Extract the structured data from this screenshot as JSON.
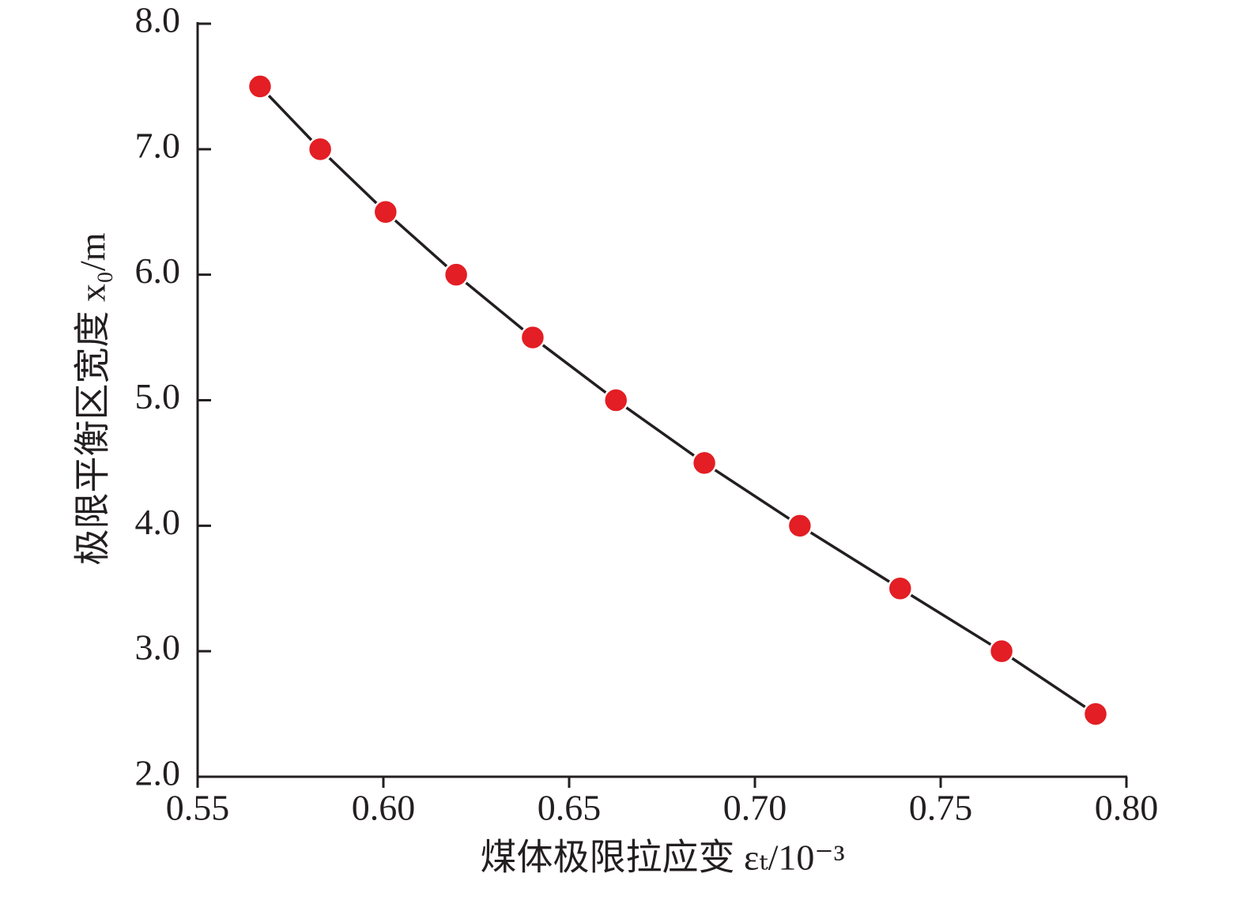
{
  "chart_data": {
    "type": "line",
    "xlabel": "煤体极限拉应变 εₜ/10⁻³",
    "ylabel": "极限平衡区宽度 x₀/m",
    "x": [
      0.5668,
      0.583,
      0.6006,
      0.6196,
      0.6402,
      0.6626,
      0.6864,
      0.7121,
      0.7391,
      0.7664,
      0.7917
    ],
    "values": [
      7.5,
      7.0,
      6.5,
      6.0,
      5.5,
      5.0,
      4.5,
      4.0,
      3.5,
      3.0,
      2.5
    ],
    "color": "#e31e24",
    "line_color": "#231f20",
    "xlim": [
      0.55,
      0.8
    ],
    "xticks": [
      0.55,
      {
        "value": 0.6,
        "label": "0.60"
      },
      0.65,
      {
        "value": 0.7,
        "label": "0.70"
      },
      0.75,
      {
        "value": 0.8,
        "label": "0.80"
      }
    ],
    "ylim": [
      2.0,
      8.0
    ],
    "yticks": [
      {
        "value": 2,
        "label": "2.0"
      },
      {
        "value": 3,
        "label": "3.0"
      },
      {
        "value": 4,
        "label": "4.0"
      },
      {
        "value": 5,
        "label": "5.0"
      },
      {
        "value": 6,
        "label": "6.0"
      },
      {
        "value": 7,
        "label": "7.0"
      },
      {
        "value": 8,
        "label": "8.0"
      }
    ]
  }
}
